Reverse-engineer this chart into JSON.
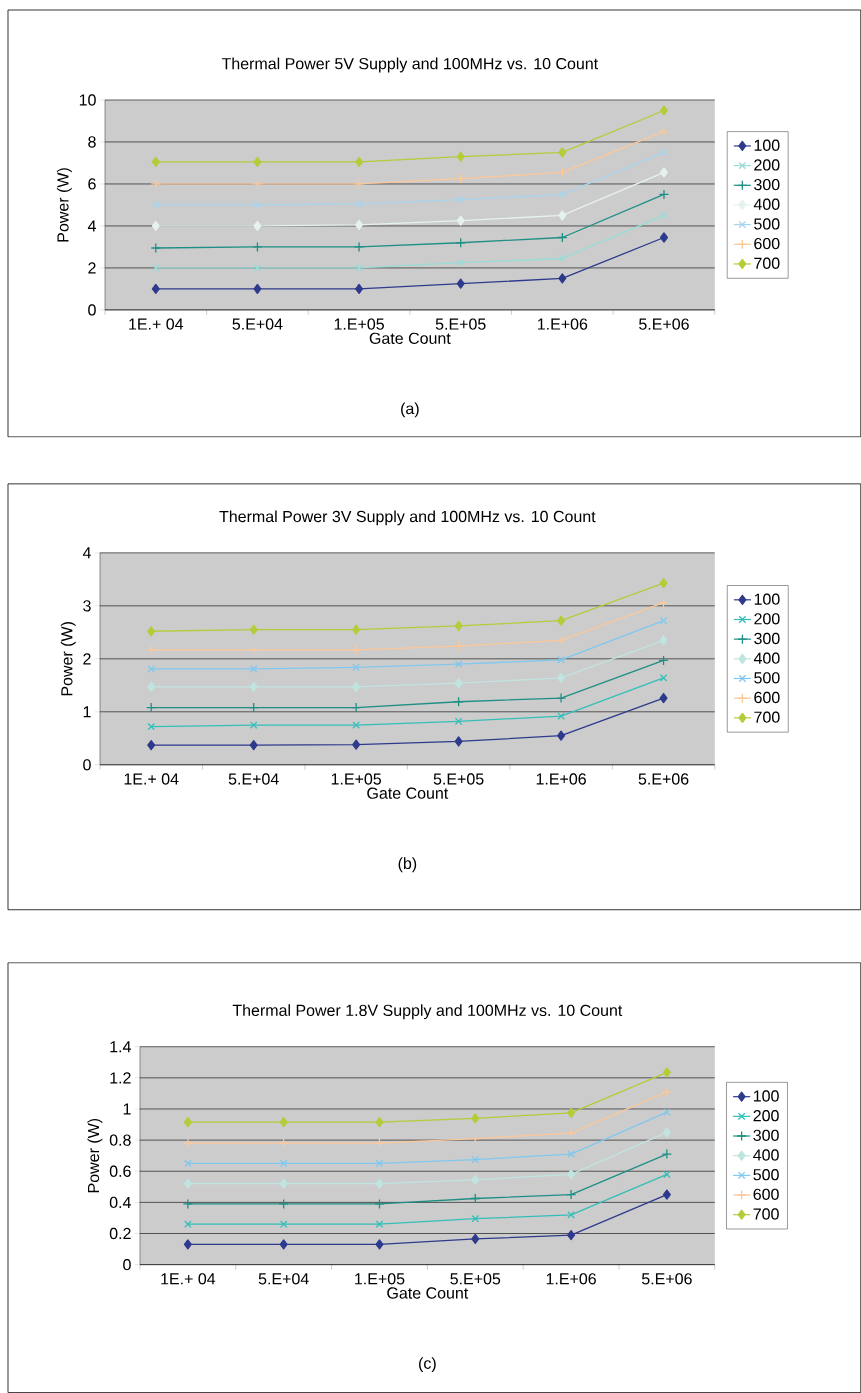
{
  "chart_data": [
    {
      "type": "line",
      "title": "Thermal Power 5V Supply and 100MHz vs. 10 Count",
      "xlabel": "Gate Count",
      "ylabel": "Power (W)",
      "annotations": [
        "(a)"
      ],
      "categories": [
        "1E.+ 04",
        "5.E+04",
        "1.E+05",
        "5.E+05",
        "1.E+06",
        "5.E+06"
      ],
      "ylim": [
        0,
        10
      ],
      "yticks": [
        0,
        2,
        4,
        6,
        8,
        10
      ],
      "grid": "y",
      "legend": "right",
      "line_style": "solid",
      "series": [
        {
          "name": "100",
          "color": "#2e3a8c",
          "marker": "diamond",
          "values": [
            1,
            1,
            1,
            1.25,
            1.5,
            3.45
          ]
        },
        {
          "name": "200",
          "color": "#99dcd8",
          "marker": "cross",
          "values": [
            2,
            2,
            2,
            2.25,
            2.45,
            4.5
          ]
        },
        {
          "name": "300",
          "color": "#1e8f85",
          "marker": "plus",
          "values": [
            2.95,
            3.0,
            3.0,
            3.2,
            3.45,
            5.5
          ]
        },
        {
          "name": "400",
          "color": "#e6f2ee",
          "marker": "diamond",
          "values": [
            4,
            4,
            4.05,
            4.25,
            4.5,
            6.55
          ]
        },
        {
          "name": "500",
          "color": "#a8d4ee",
          "marker": "cross",
          "values": [
            5,
            5,
            5.05,
            5.25,
            5.5,
            7.5
          ]
        },
        {
          "name": "600",
          "color": "#fbc89a",
          "marker": "plus",
          "values": [
            6,
            6,
            6,
            6.25,
            6.55,
            8.5
          ]
        },
        {
          "name": "700",
          "color": "#b5cc3a",
          "marker": "diamond",
          "values": [
            7.05,
            7.05,
            7.05,
            7.3,
            7.5,
            9.5
          ]
        }
      ]
    },
    {
      "type": "line",
      "title": "Thermal Power 3V Supply and 100MHz vs. 10 Count",
      "xlabel": "Gate Count",
      "ylabel": "Power (W)",
      "annotations": [
        "(b)"
      ],
      "categories": [
        "1E.+ 04",
        "5.E+04",
        "1.E+05",
        "5.E+05",
        "1.E+06",
        "5.E+06"
      ],
      "ylim": [
        0,
        4
      ],
      "yticks": [
        0,
        1,
        2,
        3,
        4
      ],
      "grid": "y",
      "legend": "right",
      "line_style": "solid",
      "series": [
        {
          "name": "100",
          "color": "#2e3a8c",
          "marker": "diamond",
          "values": [
            0.37,
            0.37,
            0.38,
            0.44,
            0.55,
            1.26
          ]
        },
        {
          "name": "200",
          "color": "#33bfb8",
          "marker": "cross",
          "values": [
            0.72,
            0.75,
            0.75,
            0.82,
            0.92,
            1.64
          ]
        },
        {
          "name": "300",
          "color": "#1e8f85",
          "marker": "plus",
          "values": [
            1.08,
            1.08,
            1.08,
            1.19,
            1.26,
            1.97
          ]
        },
        {
          "name": "400",
          "color": "#c0e4e0",
          "marker": "diamond",
          "values": [
            1.47,
            1.47,
            1.47,
            1.54,
            1.64,
            2.35
          ]
        },
        {
          "name": "500",
          "color": "#80c8ee",
          "marker": "cross",
          "values": [
            1.81,
            1.81,
            1.84,
            1.9,
            1.98,
            2.72
          ]
        },
        {
          "name": "600",
          "color": "#fbc89a",
          "marker": "plus",
          "values": [
            2.17,
            2.17,
            2.17,
            2.24,
            2.35,
            3.06
          ]
        },
        {
          "name": "700",
          "color": "#b5cc3a",
          "marker": "diamond",
          "values": [
            2.52,
            2.55,
            2.55,
            2.62,
            2.72,
            3.43
          ]
        }
      ]
    },
    {
      "type": "line",
      "title": "Thermal Power 1.8V Supply and 100MHz vs. 10 Count",
      "xlabel": "Gate Count",
      "ylabel": "Power (W)",
      "annotations": [
        "(c)"
      ],
      "categories": [
        "1E.+ 04",
        "5.E+04",
        "1.E+05",
        "5.E+05",
        "1.E+06",
        "5.E+06"
      ],
      "ylim": [
        0,
        1.4
      ],
      "yticks": [
        0,
        0.2,
        0.4,
        0.6,
        0.8,
        1,
        1.2,
        1.4
      ],
      "grid": "y",
      "legend": "right",
      "line_style": "solid",
      "series": [
        {
          "name": "100",
          "color": "#2e3a8c",
          "marker": "diamond",
          "values": [
            0.13,
            0.13,
            0.13,
            0.165,
            0.19,
            0.45
          ]
        },
        {
          "name": "200",
          "color": "#33bfb8",
          "marker": "cross",
          "values": [
            0.26,
            0.26,
            0.26,
            0.295,
            0.32,
            0.58
          ]
        },
        {
          "name": "300",
          "color": "#1e8f85",
          "marker": "plus",
          "values": [
            0.39,
            0.39,
            0.39,
            0.425,
            0.45,
            0.71
          ]
        },
        {
          "name": "400",
          "color": "#c0e4e0",
          "marker": "diamond",
          "values": [
            0.52,
            0.52,
            0.52,
            0.545,
            0.58,
            0.85
          ]
        },
        {
          "name": "500",
          "color": "#80c8ee",
          "marker": "cross",
          "values": [
            0.65,
            0.65,
            0.65,
            0.675,
            0.71,
            0.98
          ]
        },
        {
          "name": "600",
          "color": "#fbc89a",
          "marker": "plus",
          "values": [
            0.78,
            0.78,
            0.78,
            0.81,
            0.845,
            1.11
          ]
        },
        {
          "name": "700",
          "color": "#b5cc3a",
          "marker": "diamond",
          "values": [
            0.915,
            0.915,
            0.915,
            0.94,
            0.975,
            1.235
          ]
        }
      ]
    }
  ]
}
